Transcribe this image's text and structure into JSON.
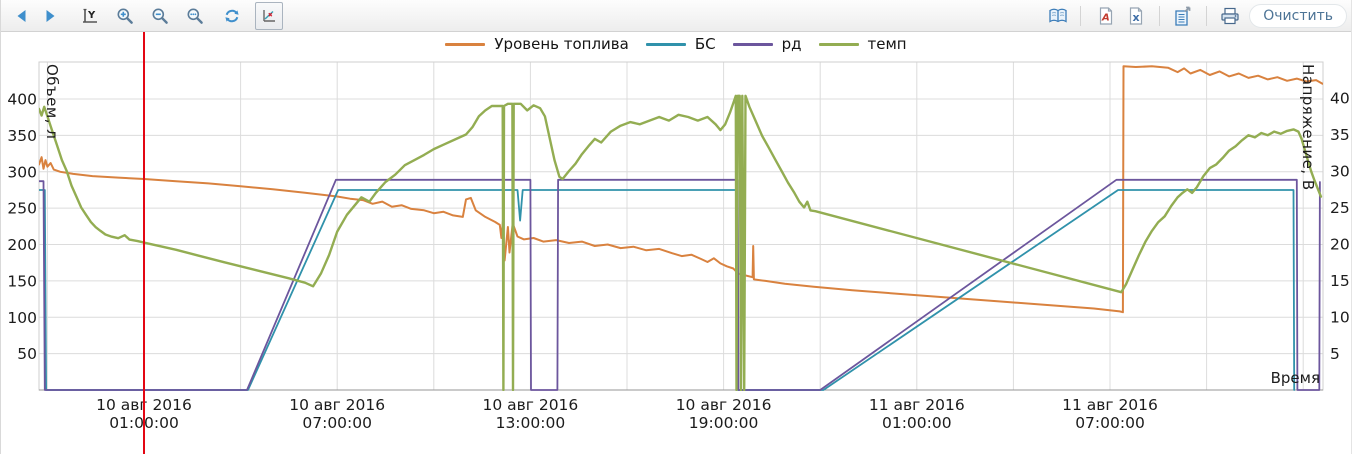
{
  "toolbar": {
    "left_icons": [
      "back",
      "forward",
      "y-axis-scale",
      "zoom-in",
      "zoom-out",
      "zoom-extents",
      "refresh",
      "chart-cursor"
    ],
    "selected_icon": "chart-cursor",
    "right_icons": [
      "report-book",
      "export-pdf",
      "export-excel",
      "export-document",
      "print"
    ],
    "clear_button_label": "Очистить"
  },
  "legend": {
    "items": [
      {
        "key": "fuel-level",
        "label": "Уровень топлива",
        "color": "#d9823f"
      },
      {
        "key": "bs",
        "label": "БС",
        "color": "#3092ab"
      },
      {
        "key": "rd",
        "label": "рд",
        "color": "#6c569d"
      },
      {
        "key": "temp",
        "label": "темп",
        "color": "#93ad52"
      }
    ]
  },
  "axes": {
    "left": {
      "title": "Объем, л",
      "ticks": [
        400,
        350,
        300,
        250,
        200,
        150,
        100,
        50
      ],
      "range": [
        0,
        452
      ]
    },
    "right": {
      "title": "Напряжение, В",
      "ticks": [
        40,
        35,
        30,
        25,
        20,
        15,
        10,
        5
      ],
      "range": [
        0,
        45.2
      ]
    },
    "x": {
      "title": "Время",
      "ticks": [
        {
          "date": "10 авг 2016",
          "time": "01:00:00"
        },
        {
          "date": "10 авг 2016",
          "time": "07:00:00"
        },
        {
          "date": "10 авг 2016",
          "time": "13:00:00"
        },
        {
          "date": "10 авг 2016",
          "time": "19:00:00"
        },
        {
          "date": "11 авг 2016",
          "time": "01:00:00"
        },
        {
          "date": "11 авг 2016",
          "time": "07:00:00"
        }
      ],
      "tick_interval_hours": 6,
      "minor_grid_hours": 3
    }
  },
  "cursor_line": {
    "color": "#e30613",
    "at_tick": "10 авг 2016 01:00:00"
  },
  "chart_data": {
    "type": "line",
    "x_unit": "hours_offset_from_2016-08-10T01:00",
    "x_range": [
      -3.26,
      36.6
    ],
    "grid": true,
    "legend_position": "top-center",
    "series": [
      {
        "name": "Уровень топлива",
        "key": "fuel-level",
        "axis": "left",
        "color": "#d9823f",
        "width": 2,
        "points": [
          [
            -3.26,
            310
          ],
          [
            -3.18,
            320
          ],
          [
            -3.12,
            304
          ],
          [
            -3.06,
            316
          ],
          [
            -3.0,
            307
          ],
          [
            -2.9,
            312
          ],
          [
            -2.8,
            303
          ],
          [
            -2.6,
            300
          ],
          [
            -2.2,
            297
          ],
          [
            -1.6,
            294
          ],
          [
            -0.8,
            292
          ],
          [
            0,
            290
          ],
          [
            1,
            287
          ],
          [
            2,
            284
          ],
          [
            3,
            280
          ],
          [
            4,
            276
          ],
          [
            5,
            271
          ],
          [
            6,
            266
          ],
          [
            6.4,
            263
          ],
          [
            6.8,
            261
          ],
          [
            7.1,
            256
          ],
          [
            7.4,
            259
          ],
          [
            7.7,
            252
          ],
          [
            8.0,
            254
          ],
          [
            8.3,
            249
          ],
          [
            8.7,
            247
          ],
          [
            9.0,
            243
          ],
          [
            9.3,
            245
          ],
          [
            9.6,
            240
          ],
          [
            9.9,
            238
          ],
          [
            10.0,
            262
          ],
          [
            10.15,
            264
          ],
          [
            10.3,
            247
          ],
          [
            10.6,
            238
          ],
          [
            10.9,
            231
          ],
          [
            11.05,
            227
          ],
          [
            11.1,
            209
          ],
          [
            11.15,
            233
          ],
          [
            11.2,
            178
          ],
          [
            11.3,
            224
          ],
          [
            11.35,
            189
          ],
          [
            11.45,
            229
          ],
          [
            11.6,
            211
          ],
          [
            11.8,
            207
          ],
          [
            12.1,
            209
          ],
          [
            12.4,
            204
          ],
          [
            12.8,
            206
          ],
          [
            13.2,
            202
          ],
          [
            13.6,
            204
          ],
          [
            14.0,
            198
          ],
          [
            14.4,
            200
          ],
          [
            14.8,
            195
          ],
          [
            15.2,
            197
          ],
          [
            15.6,
            192
          ],
          [
            16.0,
            194
          ],
          [
            16.4,
            188
          ],
          [
            16.7,
            184
          ],
          [
            17.0,
            186
          ],
          [
            17.3,
            180
          ],
          [
            17.5,
            176
          ],
          [
            17.7,
            181
          ],
          [
            17.9,
            174
          ],
          [
            18.1,
            170
          ],
          [
            18.3,
            167
          ],
          [
            18.45,
            160
          ],
          [
            18.9,
            155
          ],
          [
            18.92,
            198
          ],
          [
            18.94,
            152
          ],
          [
            19.3,
            150
          ],
          [
            19.9,
            146
          ],
          [
            20.8,
            142
          ],
          [
            22,
            137
          ],
          [
            23.5,
            132
          ],
          [
            25,
            127
          ],
          [
            26.5,
            122
          ],
          [
            28,
            117
          ],
          [
            29.5,
            112
          ],
          [
            30.3,
            108
          ],
          [
            30.4,
            107
          ],
          [
            30.42,
            445
          ],
          [
            30.8,
            444
          ],
          [
            31.3,
            445
          ],
          [
            31.8,
            443
          ],
          [
            32.1,
            437
          ],
          [
            32.3,
            442
          ],
          [
            32.5,
            435
          ],
          [
            32.8,
            440
          ],
          [
            33.1,
            433
          ],
          [
            33.4,
            438
          ],
          [
            33.7,
            431
          ],
          [
            34.0,
            435
          ],
          [
            34.3,
            429
          ],
          [
            34.6,
            432
          ],
          [
            34.9,
            427
          ],
          [
            35.2,
            430
          ],
          [
            35.5,
            425
          ],
          [
            35.8,
            428
          ],
          [
            36.1,
            424
          ],
          [
            36.4,
            426
          ],
          [
            36.6,
            421
          ]
        ]
      },
      {
        "name": "БС",
        "key": "bs",
        "axis": "right",
        "color": "#3092ab",
        "width": 1.8,
        "points": [
          [
            -3.26,
            27.4
          ],
          [
            -3.08,
            27.4
          ],
          [
            -3.04,
            0
          ],
          [
            3.23,
            0
          ],
          [
            6.03,
            27.4
          ],
          [
            11.6,
            27.4
          ],
          [
            11.68,
            23.2
          ],
          [
            11.76,
            27.4
          ],
          [
            18.43,
            27.4
          ],
          [
            18.45,
            0
          ],
          [
            21.1,
            0
          ],
          [
            30.25,
            27.4
          ],
          [
            35.7,
            27.4
          ],
          [
            35.72,
            0
          ]
        ]
      },
      {
        "name": "рд",
        "key": "rd",
        "axis": "right",
        "color": "#6c569d",
        "width": 1.8,
        "points": [
          [
            -3.26,
            28.6
          ],
          [
            -3.12,
            28.6
          ],
          [
            -3.08,
            0
          ],
          [
            3.2,
            0
          ],
          [
            5.96,
            28.8
          ],
          [
            12.0,
            28.8
          ],
          [
            12.02,
            0
          ],
          [
            12.84,
            0
          ],
          [
            12.86,
            28.8
          ],
          [
            18.44,
            28.8
          ],
          [
            18.46,
            0
          ],
          [
            21.0,
            0
          ],
          [
            30.2,
            28.8
          ],
          [
            35.8,
            28.8
          ],
          [
            35.82,
            0
          ],
          [
            36.5,
            0
          ],
          [
            36.52,
            28.5
          ]
        ]
      },
      {
        "name": "темп",
        "key": "temp",
        "axis": "right",
        "color": "#93ad52",
        "width": 2.4,
        "points": [
          [
            -3.26,
            38.5
          ],
          [
            -3.18,
            37.6
          ],
          [
            -3.1,
            38.8
          ],
          [
            -3.0,
            37.5
          ],
          [
            -2.85,
            35.5
          ],
          [
            -2.7,
            33.5
          ],
          [
            -2.55,
            31.5
          ],
          [
            -2.4,
            30
          ],
          [
            -2.25,
            28
          ],
          [
            -2.1,
            26.5
          ],
          [
            -1.95,
            25
          ],
          [
            -1.8,
            24
          ],
          [
            -1.65,
            23
          ],
          [
            -1.5,
            22.3
          ],
          [
            -1.35,
            21.8
          ],
          [
            -1.2,
            21.3
          ],
          [
            -1.0,
            21
          ],
          [
            -0.8,
            20.8
          ],
          [
            -0.6,
            21.2
          ],
          [
            -0.45,
            20.6
          ],
          [
            -0.2,
            20.4
          ],
          [
            0.1,
            20.1
          ],
          [
            0.5,
            19.7
          ],
          [
            1.0,
            19.2
          ],
          [
            1.7,
            18.4
          ],
          [
            2.5,
            17.5
          ],
          [
            3.5,
            16.4
          ],
          [
            4.5,
            15.3
          ],
          [
            5.0,
            14.7
          ],
          [
            5.25,
            14.2
          ],
          [
            5.5,
            16
          ],
          [
            5.75,
            18.5
          ],
          [
            6.0,
            21.7
          ],
          [
            6.3,
            24
          ],
          [
            6.75,
            26.4
          ],
          [
            7.0,
            25.8
          ],
          [
            7.2,
            27
          ],
          [
            7.5,
            28.5
          ],
          [
            7.8,
            29.5
          ],
          [
            8.1,
            30.8
          ],
          [
            8.4,
            31.5
          ],
          [
            8.7,
            32.2
          ],
          [
            9.0,
            33
          ],
          [
            9.3,
            33.6
          ],
          [
            9.7,
            34.4
          ],
          [
            10.0,
            35
          ],
          [
            10.2,
            36
          ],
          [
            10.4,
            37.5
          ],
          [
            10.6,
            38.3
          ],
          [
            10.8,
            38.9
          ],
          [
            11.14,
            38.9
          ],
          [
            11.16,
            0
          ],
          [
            11.18,
            38.9
          ],
          [
            11.3,
            39.2
          ],
          [
            11.44,
            39.2
          ],
          [
            11.46,
            0
          ],
          [
            11.48,
            39.2
          ],
          [
            11.7,
            39.2
          ],
          [
            11.9,
            38.3
          ],
          [
            12.1,
            39
          ],
          [
            12.3,
            38.6
          ],
          [
            12.45,
            37.5
          ],
          [
            12.6,
            34.5
          ],
          [
            12.75,
            31.5
          ],
          [
            12.9,
            29.2
          ],
          [
            13.0,
            28.9
          ],
          [
            13.2,
            30
          ],
          [
            13.4,
            31
          ],
          [
            13.6,
            32.3
          ],
          [
            13.8,
            33.4
          ],
          [
            14.0,
            34.4
          ],
          [
            14.2,
            33.9
          ],
          [
            14.5,
            35.4
          ],
          [
            14.8,
            36.2
          ],
          [
            15.1,
            36.7
          ],
          [
            15.4,
            36.4
          ],
          [
            15.7,
            36.9
          ],
          [
            16.0,
            37.4
          ],
          [
            16.3,
            36.9
          ],
          [
            16.6,
            37.7
          ],
          [
            16.9,
            37.4
          ],
          [
            17.2,
            36.9
          ],
          [
            17.5,
            37.4
          ],
          [
            17.75,
            36.4
          ],
          [
            17.9,
            35.6
          ],
          [
            18.05,
            36.4
          ],
          [
            18.2,
            38
          ],
          [
            18.3,
            39.3
          ],
          [
            18.38,
            40.3
          ],
          [
            18.4,
            0
          ],
          [
            18.44,
            40.3
          ],
          [
            18.5,
            40.3
          ],
          [
            18.54,
            0
          ],
          [
            18.58,
            40.3
          ],
          [
            18.64,
            0
          ],
          [
            18.68,
            40.3
          ],
          [
            18.8,
            38.8
          ],
          [
            19.0,
            36.8
          ],
          [
            19.2,
            34.8
          ],
          [
            19.4,
            33.2
          ],
          [
            19.6,
            31.6
          ],
          [
            19.8,
            30
          ],
          [
            20.0,
            28.4
          ],
          [
            20.2,
            27
          ],
          [
            20.35,
            25.8
          ],
          [
            20.5,
            25
          ],
          [
            20.6,
            25.8
          ],
          [
            20.7,
            24.6
          ],
          [
            20.85,
            24.5
          ],
          [
            30.35,
            13.4
          ],
          [
            30.5,
            14.5
          ],
          [
            30.7,
            16.5
          ],
          [
            30.9,
            18.5
          ],
          [
            31.1,
            20.3
          ],
          [
            31.3,
            21.8
          ],
          [
            31.5,
            23
          ],
          [
            31.7,
            23.8
          ],
          [
            31.9,
            25.2
          ],
          [
            32.1,
            26.4
          ],
          [
            32.25,
            27
          ],
          [
            32.4,
            27.5
          ],
          [
            32.55,
            27
          ],
          [
            32.7,
            27.8
          ],
          [
            32.9,
            29.3
          ],
          [
            33.1,
            30.4
          ],
          [
            33.3,
            30.9
          ],
          [
            33.5,
            31.8
          ],
          [
            33.7,
            32.8
          ],
          [
            33.9,
            33.4
          ],
          [
            34.1,
            34.2
          ],
          [
            34.3,
            34.9
          ],
          [
            34.5,
            34.6
          ],
          [
            34.7,
            35.2
          ],
          [
            34.9,
            34.9
          ],
          [
            35.1,
            35.4
          ],
          [
            35.3,
            35.1
          ],
          [
            35.5,
            35.5
          ],
          [
            35.7,
            35.7
          ],
          [
            35.85,
            35.4
          ],
          [
            35.95,
            34.4
          ],
          [
            36.05,
            32.9
          ],
          [
            36.15,
            31.4
          ],
          [
            36.25,
            29.9
          ],
          [
            36.35,
            28.7
          ],
          [
            36.45,
            27.6
          ],
          [
            36.55,
            26.5
          ]
        ]
      }
    ]
  }
}
